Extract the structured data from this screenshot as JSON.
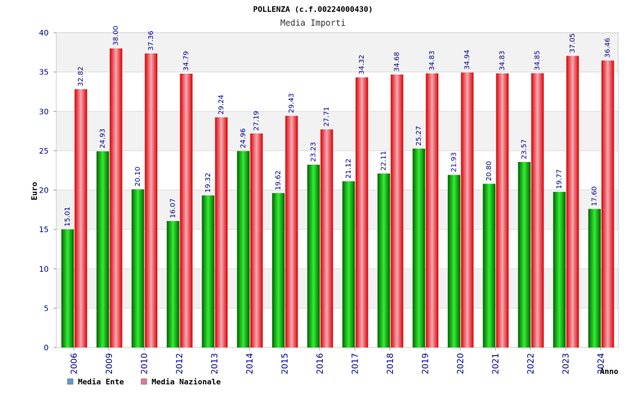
{
  "chart_data": {
    "type": "bar",
    "title": "POLLENZA (c.f.00224000430)",
    "subtitle": "Media Importi",
    "xlabel": "Anno",
    "ylabel": "Euro",
    "ylim": [
      0,
      40
    ],
    "yticks": [
      "0",
      "5",
      "10",
      "15",
      "20",
      "25",
      "30",
      "35",
      "40"
    ],
    "categories": [
      "2006",
      "2009",
      "2010",
      "2012",
      "2013",
      "2014",
      "2015",
      "2016",
      "2017",
      "2018",
      "2019",
      "2020",
      "2021",
      "2022",
      "2023",
      "2024"
    ],
    "series": [
      {
        "name": "Media Ente",
        "values": [
          15.01,
          24.93,
          20.1,
          16.07,
          19.32,
          24.96,
          19.62,
          23.23,
          21.12,
          22.11,
          25.27,
          21.93,
          20.8,
          23.57,
          19.77,
          17.6
        ],
        "labels": [
          "15.01",
          "24.93",
          "20.10",
          "16.07",
          "19.32",
          "24.96",
          "19.62",
          "23.23",
          "21.12",
          "22.11",
          "25.27",
          "21.93",
          "20.80",
          "23.57",
          "19.77",
          "17.60"
        ]
      },
      {
        "name": "Media Nazionale",
        "values": [
          32.82,
          38.0,
          37.36,
          34.79,
          29.24,
          27.19,
          29.43,
          27.71,
          34.32,
          34.68,
          34.83,
          34.94,
          34.83,
          34.85,
          37.05,
          36.46
        ],
        "labels": [
          "32.82",
          "38.00",
          "37.36",
          "34.79",
          "29.24",
          "27.19",
          "29.43",
          "27.71",
          "34.32",
          "34.68",
          "34.83",
          "34.94",
          "34.83",
          "34.85",
          "37.05",
          "36.46"
        ]
      }
    ],
    "legend": [
      {
        "label": "Media Ente",
        "color": "#5b9bd5"
      },
      {
        "label": "Media Nazionale",
        "color": "#e07aa0"
      }
    ],
    "colors": {
      "ente_dark": "#006400",
      "ente_light": "#33ee33",
      "naz_dark": "#dd0000",
      "naz_light": "#f3aab5",
      "band": "#f2f2f2",
      "tick_text": "#00008b"
    }
  }
}
